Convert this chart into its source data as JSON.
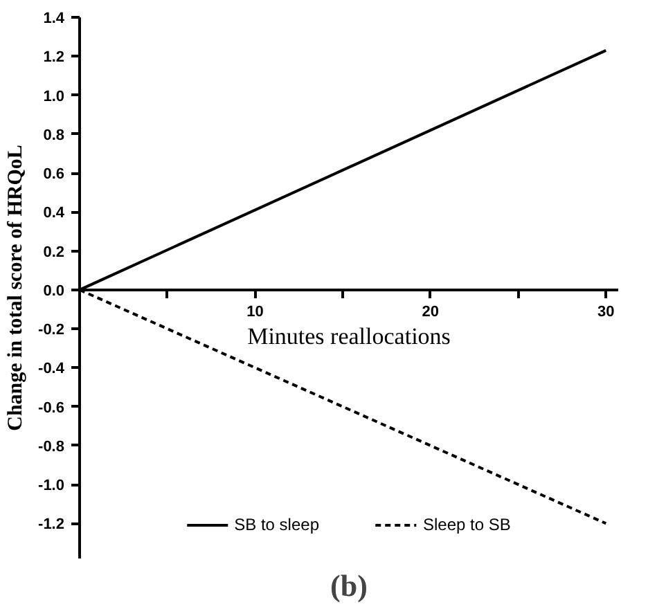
{
  "chart_data": {
    "type": "line",
    "xlabel": "Minutes reallocations",
    "ylabel": "Change in total score of HRQoL",
    "annotations": [
      "(b)"
    ],
    "x": [
      0,
      30
    ],
    "series": [
      {
        "name": "SB to sleep",
        "color": "#000000",
        "values": [
          0,
          1.23
        ],
        "line_style": "solid"
      },
      {
        "name": "Sleep to SB",
        "color": "#000000",
        "values": [
          0,
          -1.2
        ],
        "line_style": "dashed"
      }
    ],
    "xlim": [
      0,
      30.7
    ],
    "ylim": [
      -1.38,
      1.4
    ],
    "xticks": [
      {
        "value": 0,
        "label": null
      },
      {
        "value": 5,
        "label": null
      },
      10,
      {
        "value": 15,
        "label": null
      },
      20,
      {
        "value": 25,
        "label": null
      },
      30
    ],
    "yticks": [
      {
        "value": 1.4,
        "label": "1.4"
      },
      {
        "value": 1.2,
        "label": "1.2"
      },
      {
        "value": 1.0,
        "label": "1.0"
      },
      {
        "value": 0.8,
        "label": "0.8"
      },
      {
        "value": 0.6,
        "label": "0.6"
      },
      {
        "value": 0.4,
        "label": "0.4"
      },
      {
        "value": 0.2,
        "label": "0.2"
      },
      {
        "value": 0.0,
        "label": "0.0"
      },
      {
        "value": -0.2,
        "label": "-0.2"
      },
      {
        "value": -0.4,
        "label": "-0.4"
      },
      {
        "value": -0.6,
        "label": "-0.6"
      },
      {
        "value": -0.8,
        "label": "-0.8"
      },
      {
        "value": -1.0,
        "label": "-1.0"
      },
      {
        "value": -1.2,
        "label": "-1.2"
      }
    ],
    "grid": false,
    "legend": "bottom",
    "marker": "none"
  }
}
